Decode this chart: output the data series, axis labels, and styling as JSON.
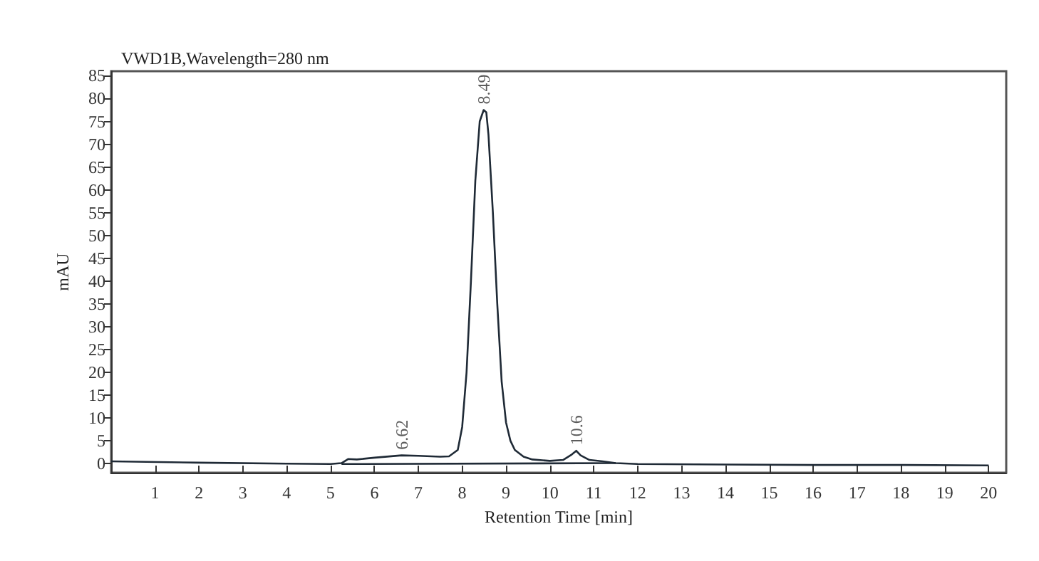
{
  "chart_data": {
    "type": "line",
    "title": "VWD1B,Wavelength=280 nm",
    "xlabel": "Retention Time [min]",
    "ylabel": "mAU",
    "xlim": [
      0,
      20.4
    ],
    "xticks": [
      1,
      2,
      3,
      4,
      5,
      6,
      7,
      8,
      9,
      10,
      11,
      12,
      13,
      14,
      15,
      16,
      17,
      18,
      19,
      20
    ],
    "ylim": [
      -2,
      86
    ],
    "yticks": [
      0,
      5,
      10,
      15,
      20,
      25,
      30,
      35,
      40,
      45,
      50,
      55,
      60,
      65,
      70,
      75,
      80,
      85
    ],
    "grid": false,
    "marker": "none",
    "line_style": "solid",
    "series": [
      {
        "color": "#1f2a36",
        "x": [
          0,
          2,
          4,
          5,
          5.25,
          5.4,
          5.6,
          6,
          6.62,
          7,
          7.5,
          7.7,
          7.9,
          8.0,
          8.1,
          8.2,
          8.3,
          8.4,
          8.49,
          8.55,
          8.6,
          8.7,
          8.8,
          8.9,
          9.0,
          9.1,
          9.2,
          9.4,
          9.6,
          10.0,
          10.3,
          10.5,
          10.6,
          10.7,
          10.9,
          11.2,
          11.5,
          12,
          14,
          16,
          18,
          20
        ],
        "values": [
          0.5,
          0.2,
          0,
          -0.1,
          0.1,
          1,
          0.9,
          1.3,
          1.8,
          1.7,
          1.5,
          1.6,
          3,
          8,
          20,
          40,
          62,
          75,
          77.5,
          77,
          72,
          55,
          35,
          18,
          9,
          5,
          3,
          1.5,
          0.9,
          0.6,
          0.8,
          2,
          2.8,
          1.8,
          0.8,
          0.5,
          0.1,
          -0.1,
          -0.2,
          -0.3,
          -0.3,
          -0.4
        ]
      },
      {
        "color": "#1f2a36",
        "x": [
          5.25,
          11.5
        ],
        "values": [
          -0.1,
          0.1
        ]
      }
    ],
    "annotations": [
      {
        "text": "6.62",
        "x": 6.62,
        "y": 1.8
      },
      {
        "text": "8.49",
        "x": 8.49,
        "y": 77.5
      },
      {
        "text": "10.6",
        "x": 10.6,
        "y": 2.8
      }
    ]
  }
}
